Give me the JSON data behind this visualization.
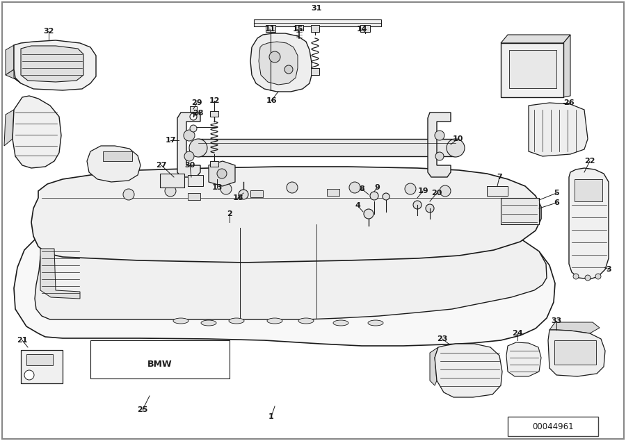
{
  "bg_color": "#ffffff",
  "line_color": "#1a1a1a",
  "diagram_id": "00044961",
  "fig_width": 9.0,
  "fig_height": 6.35,
  "dpi": 100
}
